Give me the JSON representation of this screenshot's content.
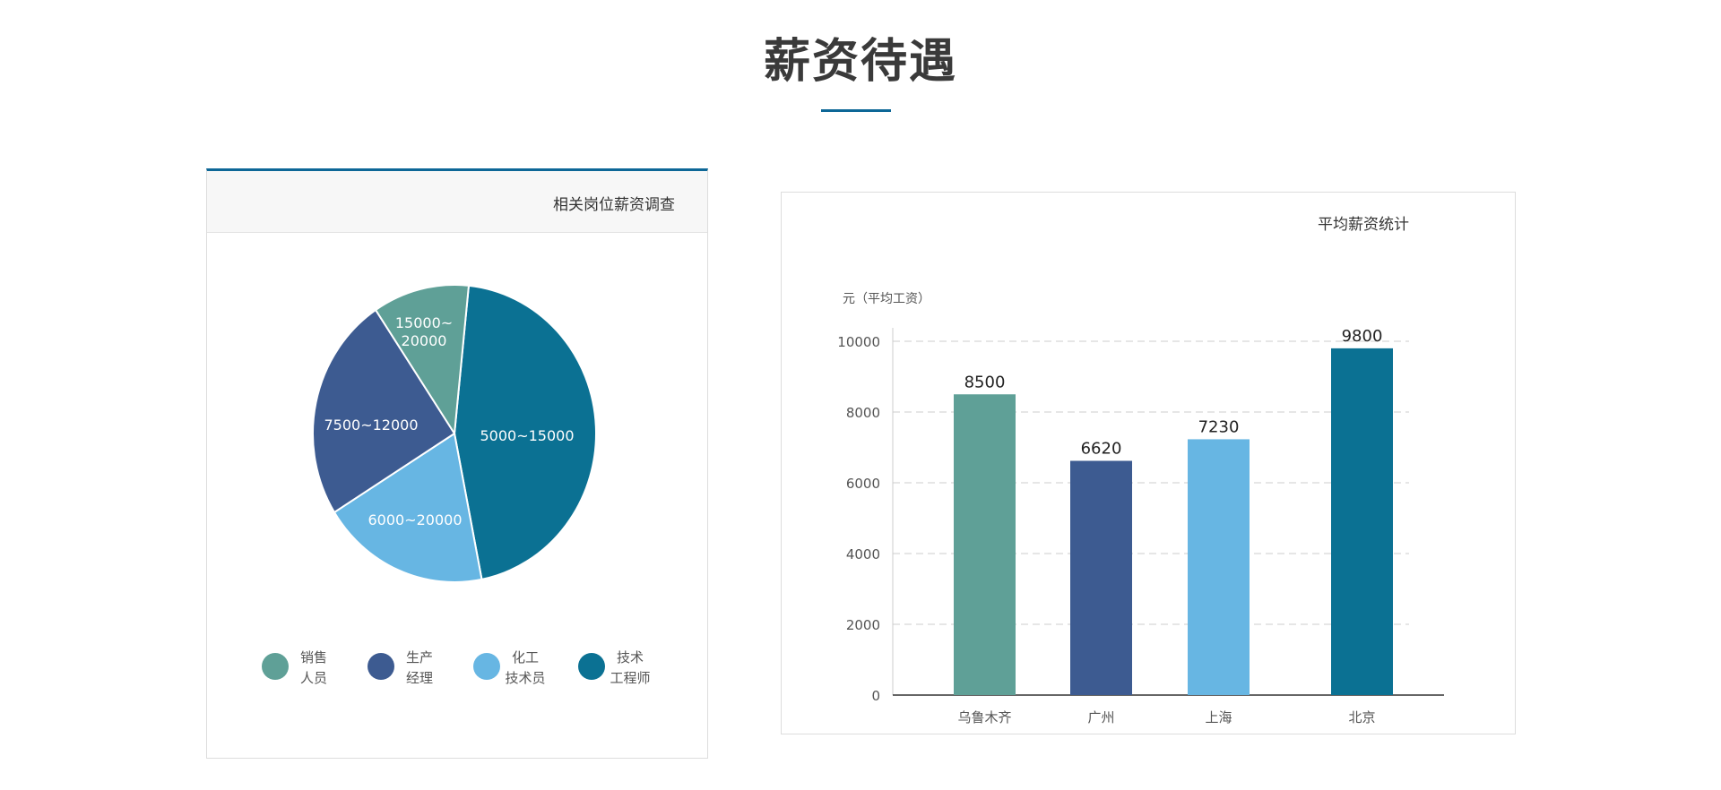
{
  "page_title": "薪资待遇",
  "colors": {
    "accent": "#0d6797",
    "teal": "#5fa097",
    "navy": "#3d5b91",
    "sky": "#67b6e3",
    "petrol": "#0b7193"
  },
  "chart_data": [
    {
      "type": "pie",
      "title": "相关岗位薪资调查",
      "slices": [
        {
          "label": "5000~15000",
          "legend": [
            "技术",
            "工程师"
          ],
          "share_pct": 45.3,
          "color": "#0b7193"
        },
        {
          "label": "6000~20000",
          "legend": [
            "化工",
            "技术员"
          ],
          "share_pct": 19.2,
          "color": "#67b6e3"
        },
        {
          "label": "7500~12000",
          "legend": [
            "生产",
            "经理"
          ],
          "share_pct": 24.5,
          "color": "#3d5b91"
        },
        {
          "label": "15000~\n20000",
          "legend": [
            "销售",
            "人员"
          ],
          "share_pct": 11.0,
          "color": "#5fa097"
        }
      ],
      "legend_order": [
        3,
        2,
        1,
        0
      ],
      "legend_placement": "bottom"
    },
    {
      "type": "bar",
      "title": "平均薪资统计",
      "ylabel": "元（平均工资）",
      "categories": [
        "乌鲁木齐",
        "广州",
        "上海",
        "北京"
      ],
      "values": [
        8500,
        6620,
        7230,
        9800
      ],
      "colors": [
        "#5fa097",
        "#3d5b91",
        "#67b6e3",
        "#0b7193"
      ],
      "ylim": [
        0,
        10000
      ],
      "yticks": [
        "0",
        "2000",
        "4000",
        "6000",
        "8000",
        "10000"
      ],
      "grid": "dashed horizontal"
    }
  ]
}
